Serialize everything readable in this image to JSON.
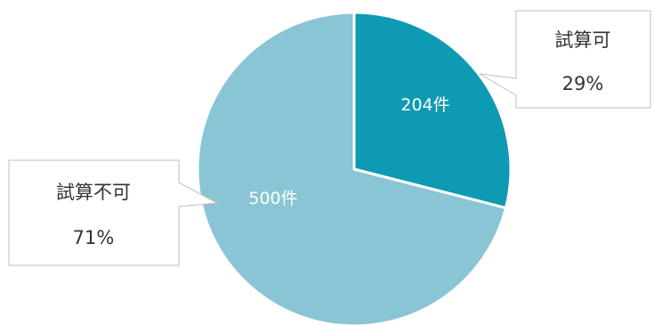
{
  "chart_data": {
    "type": "pie",
    "slices": [
      {
        "name": "試算可",
        "value": 204,
        "value_label": "204件",
        "percent_label": "29%",
        "color": "#0f9ab3"
      },
      {
        "name": "試算不可",
        "value": 500,
        "value_label": "500件",
        "percent_label": "71%",
        "color": "#89c5d5"
      }
    ],
    "start_angle": "12 o'clock",
    "direction": "clockwise",
    "legend": "none (callout labels)"
  }
}
